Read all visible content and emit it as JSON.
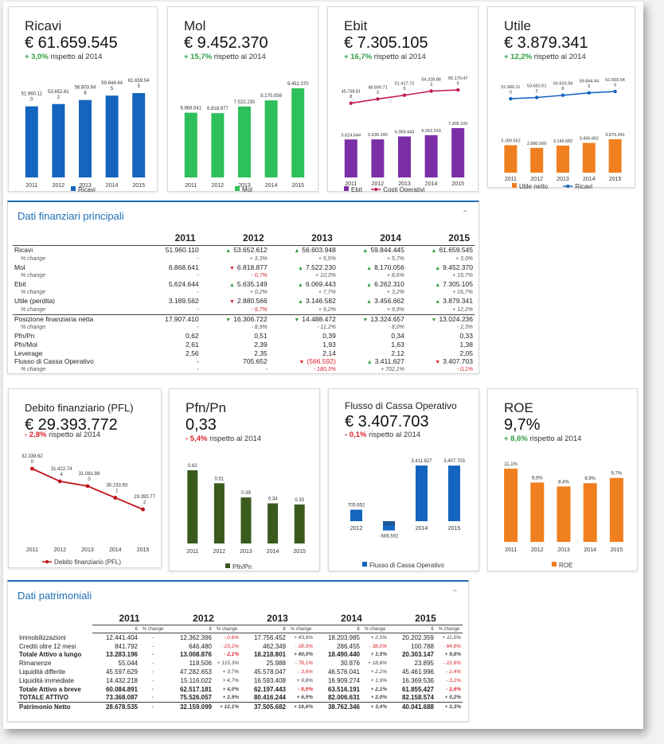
{
  "kpis_top": [
    {
      "title": "Ricavi",
      "value": "€ 61.659.545",
      "change": "+ 3,0%",
      "change_dir": "pos",
      "suffix": "rispetto al 2014"
    },
    {
      "title": "Mol",
      "value": "€ 9.452.370",
      "change": "+ 15,7%",
      "change_dir": "pos",
      "suffix": "rispetto al 2014"
    },
    {
      "title": "Ebit",
      "value": "€ 7.305.105",
      "change": "+ 16,7%",
      "change_dir": "pos",
      "suffix": "rispetto al 2014"
    },
    {
      "title": "Utile",
      "value": "€ 3.879.341",
      "change": "+ 12,2%",
      "change_dir": "pos",
      "suffix": "rispetto al 2014"
    }
  ],
  "kpis_mid": [
    {
      "title": "Debito finanziario (PFL)",
      "value": "€ 29.393.772",
      "change": "- 2,8%",
      "change_dir": "neg",
      "suffix": "rispetto al 2014"
    },
    {
      "title": "Pfn/Pn",
      "value": "0,33",
      "change": "- 5,4%",
      "change_dir": "neg",
      "suffix": "rispetto al 2014"
    },
    {
      "title": "Flusso di Cassa Operativo",
      "value": "€ 3.407.703",
      "change": "- 0,1%",
      "change_dir": "neg",
      "suffix": "rispetto al 2014"
    },
    {
      "title": "ROE",
      "value": "9,7%",
      "change": "+ 8,6%",
      "change_dir": "pos",
      "suffix": "rispetto al 2014"
    }
  ],
  "chart_data": [
    {
      "type": "bar",
      "id": "ricavi",
      "categories": [
        "2011",
        "2012",
        "2013",
        "2014",
        "2015"
      ],
      "values": [
        51960110,
        53652612,
        56603948,
        59844445,
        61659545
      ],
      "labels": [
        "51.960.11\n0",
        "53.652.61\n2",
        "56.603.94\n8",
        "59.844.44\n5",
        "61.659.54\n5"
      ],
      "legend": [
        "Ricavi"
      ],
      "colors": [
        "#1565c0"
      ]
    },
    {
      "type": "bar",
      "id": "mol",
      "categories": [
        "2011",
        "2012",
        "2013",
        "2014",
        "2015"
      ],
      "values": [
        6868641,
        6818877,
        7522230,
        8170056,
        9452370
      ],
      "labels": [
        "6.868.641",
        "6.818.877",
        "7.522.230",
        "8.170.056",
        "9.452.370"
      ],
      "legend": [
        "Mol"
      ],
      "colors": [
        "#2ec05b"
      ]
    },
    {
      "type": "bar",
      "id": "ebit",
      "categories": [
        "2011",
        "2012",
        "2013",
        "2014",
        "2015"
      ],
      "series": [
        {
          "name": "Ebit",
          "values": [
            5624644,
            5635149,
            6069443,
            6262310,
            7305105
          ]
        },
        {
          "name": "Costi Operativi",
          "values": [
            45738818,
            48699713,
            51417725,
            54328883,
            55170476
          ]
        }
      ],
      "bar_labels": [
        "5.624.644",
        "5.635.149",
        "6.069.443",
        "6.262.310",
        "7.305.105"
      ],
      "line_labels": [
        "45.738.81\n8",
        "48.699.71\n3",
        "51.417.72\n5",
        "54.328.88\n3",
        "55.170.47\n6"
      ],
      "legend": [
        "Ebit",
        "Costi Operativi"
      ],
      "colors": [
        "#7b2fa6",
        "#c2185b"
      ]
    },
    {
      "type": "bar",
      "id": "utile",
      "categories": [
        "2011",
        "2012",
        "2013",
        "2014",
        "2015"
      ],
      "series": [
        {
          "name": "Utile netto",
          "values": [
            3189562,
            2880566,
            3146582,
            3456662,
            3879341
          ]
        },
        {
          "name": "Ricavi",
          "values": [
            51960110,
            53652612,
            56603948,
            59844445,
            61659545
          ]
        }
      ],
      "bar_labels": [
        "3.189.562",
        "2.880.566",
        "3.146.582",
        "3.456.662",
        "3.879.341"
      ],
      "line_labels": [
        "51.960.11\n0",
        "53.652.61\n2",
        "56.603.94\n8",
        "59.844.44\n5",
        "61.659.54\n5"
      ],
      "legend": [
        "Utile netto",
        "Ricavi"
      ],
      "colors": [
        "#f07f1f",
        "#1565c0"
      ]
    },
    {
      "type": "line",
      "id": "debito",
      "categories": [
        "2011",
        "2012",
        "2013",
        "2014",
        "2015"
      ],
      "values": [
        32339620,
        31422744,
        31081880,
        30233931,
        29393772
      ],
      "labels": [
        "32.339.62\n0",
        "31.422.74\n4",
        "31.081.88\n0",
        "30.233.93\n1",
        "29.393.77\n2"
      ],
      "legend": [
        "Debito finanziario (PFL)"
      ],
      "colors": [
        "#c0121b"
      ]
    },
    {
      "type": "bar",
      "id": "pfnpn",
      "categories": [
        "2011",
        "2012",
        "2013",
        "2014",
        "2015"
      ],
      "values": [
        0.62,
        0.51,
        0.39,
        0.34,
        0.33
      ],
      "labels": [
        "0.62",
        "0.51",
        "0.39",
        "0.34",
        "0.33"
      ],
      "legend": [
        "Pfn/Pn"
      ],
      "colors": [
        "#3a5a1e"
      ]
    },
    {
      "type": "bar",
      "id": "flusso",
      "categories": [
        "2012",
        "2013",
        "2014",
        "2015"
      ],
      "values": [
        705652,
        -566592,
        3411627,
        3407703
      ],
      "labels": [
        "705.652",
        "-566.592",
        "3.411.627",
        "3.407.703"
      ],
      "legend": [
        "Flusso di Cassa Operativo"
      ],
      "colors": [
        "#1565c0"
      ]
    },
    {
      "type": "bar",
      "id": "roe",
      "categories": [
        "2011",
        "2012",
        "2013",
        "2014",
        "2015"
      ],
      "values": [
        11.1,
        9.0,
        8.4,
        8.9,
        9.7
      ],
      "labels": [
        "11,1%",
        "9,0%",
        "8,4%",
        "8,9%",
        "9,7%"
      ],
      "legend": [
        "ROE"
      ],
      "colors": [
        "#f07f1f"
      ]
    }
  ],
  "fin_panel": {
    "title": "Dati finanziari principali",
    "years": [
      "2011",
      "2012",
      "2013",
      "2014",
      "2015"
    ],
    "rows": [
      {
        "label": "Ricavi",
        "cells": [
          [
            "",
            "51.960.110"
          ],
          [
            "up",
            "53.652.612"
          ],
          [
            "up",
            "56.603.948"
          ],
          [
            "up",
            "59.844.445"
          ],
          [
            "up",
            "61.659.545"
          ]
        ]
      },
      {
        "label": "% change",
        "sub": true,
        "cells": [
          [
            "",
            "-"
          ],
          [
            "",
            "+ 3,3%"
          ],
          [
            "",
            "+ 5,5%"
          ],
          [
            "",
            "+ 5,7%"
          ],
          [
            "",
            "+ 3,0%"
          ]
        ]
      },
      {
        "label": "Mol",
        "cells": [
          [
            "",
            "6.868.641"
          ],
          [
            "dn",
            "6.818.877"
          ],
          [
            "up",
            "7.522.230"
          ],
          [
            "up",
            "8.170.056"
          ],
          [
            "up",
            "9.452.370"
          ]
        ]
      },
      {
        "label": "% change",
        "sub": true,
        "cells": [
          [
            "",
            "-"
          ],
          [
            "r",
            "- 0,7%"
          ],
          [
            "",
            "+ 10,3%"
          ],
          [
            "",
            "+ 8,6%"
          ],
          [
            "",
            "+ 15,7%"
          ]
        ]
      },
      {
        "label": "Ebit",
        "cells": [
          [
            "",
            "5.624.644"
          ],
          [
            "up",
            "5.635.149"
          ],
          [
            "up",
            "6.069.443"
          ],
          [
            "up",
            "6.262.310"
          ],
          [
            "up",
            "7.305.105"
          ]
        ]
      },
      {
        "label": "% change",
        "sub": true,
        "cells": [
          [
            "",
            "-"
          ],
          [
            "",
            "+ 0,2%"
          ],
          [
            "",
            "+ 7,7%"
          ],
          [
            "",
            "+ 3,2%"
          ],
          [
            "",
            "+ 16,7%"
          ]
        ]
      },
      {
        "label": "Utile (perdita)",
        "cells": [
          [
            "",
            "3.189.562"
          ],
          [
            "dn",
            "2.880.566"
          ],
          [
            "up",
            "3.146.582"
          ],
          [
            "up",
            "3.456.662"
          ],
          [
            "up",
            "3.879.341"
          ]
        ]
      },
      {
        "label": "% change",
        "sub": true,
        "cells": [
          [
            "",
            "-"
          ],
          [
            "r",
            "- 9,7%"
          ],
          [
            "",
            "+ 9,2%"
          ],
          [
            "",
            "+ 9,9%"
          ],
          [
            "",
            "+ 12,2%"
          ]
        ]
      },
      {
        "label": "Posizione finanziaria netta",
        "sep": true,
        "cells": [
          [
            "",
            "17.907.410"
          ],
          [
            "dnG",
            "16.306.722"
          ],
          [
            "dnG",
            "14.488.472"
          ],
          [
            "dnG",
            "13.324.657"
          ],
          [
            "dnG",
            "13.024.236"
          ]
        ]
      },
      {
        "label": "% change",
        "sub": true,
        "cells": [
          [
            "",
            "-"
          ],
          [
            "",
            "- 8,9%"
          ],
          [
            "",
            "- 11,2%"
          ],
          [
            "",
            "- 8,0%"
          ],
          [
            "",
            "- 2,3%"
          ]
        ]
      },
      {
        "label": "Pfn/Pn",
        "plain": true,
        "cells": [
          [
            "",
            "0,62"
          ],
          [
            "",
            "0,51"
          ],
          [
            "",
            "0,39"
          ],
          [
            "",
            "0,34"
          ],
          [
            "",
            "0,33"
          ]
        ]
      },
      {
        "label": "Pfn/Mol",
        "plain": true,
        "cells": [
          [
            "",
            "2,61"
          ],
          [
            "",
            "2,39"
          ],
          [
            "",
            "1,93"
          ],
          [
            "",
            "1,63"
          ],
          [
            "",
            "1,38"
          ]
        ]
      },
      {
        "label": "Leverage",
        "plain": true,
        "cells": [
          [
            "",
            "2,56"
          ],
          [
            "",
            "2,35"
          ],
          [
            "",
            "2,14"
          ],
          [
            "",
            "2,12"
          ],
          [
            "",
            "2,05"
          ]
        ]
      },
      {
        "label": "Flusso di Cassa Operativo",
        "cells": [
          [
            "",
            "-"
          ],
          [
            "",
            "705.652"
          ],
          [
            "dnR",
            "(566.592)"
          ],
          [
            "up",
            "3.411.627"
          ],
          [
            "dn",
            "3.407.703"
          ]
        ]
      },
      {
        "label": "% change",
        "sub": true,
        "cells": [
          [
            "",
            "-"
          ],
          [
            "",
            "-"
          ],
          [
            "r",
            "- 180,3%"
          ],
          [
            "",
            "+ 702,1%"
          ],
          [
            "r",
            "- 0,1%"
          ]
        ]
      }
    ]
  },
  "pat_panel": {
    "title": "Dati patrimoniali",
    "years": [
      "2011",
      "2012",
      "2013",
      "2014",
      "2015"
    ],
    "subhead": [
      "€",
      "% change"
    ],
    "rows": [
      {
        "label": "Immobilizzazioni",
        "cells": [
          "12.441.404",
          "-",
          "12.362.396",
          "- 0,6%",
          "17.756.452",
          "+ 43,6%",
          "18.203.985",
          "+ 2,5%",
          "20.202.359",
          "+ 11,0%"
        ]
      },
      {
        "label": "Crediti oltre 12 mesi",
        "cells": [
          "841.792",
          "-",
          "646.480",
          "- 23,2%",
          "462.349",
          "- 28,5%",
          "286.455",
          "- 38,0%",
          "100.788",
          "- 64,8%"
        ]
      },
      {
        "label": "Totale Attivo a lungo",
        "bold": true,
        "cells": [
          "13.283.196",
          "-",
          "13.008.876",
          "- 2,1%",
          "18.218.801",
          "+ 40,0%",
          "18.490.440",
          "+ 1,5%",
          "20.303.147",
          "+ 9,8%"
        ]
      },
      {
        "label": "Rimanenze",
        "cells": [
          "55.044",
          "-",
          "118.506",
          "+ 115,3%",
          "25.988",
          "- 78,1%",
          "30.876",
          "+ 18,8%",
          "23.895",
          "- 22,6%"
        ]
      },
      {
        "label": "Liquidità differite",
        "cells": [
          "45.597.629",
          "-",
          "47.282.653",
          "+ 3,7%",
          "45.578.047",
          "- 3,6%",
          "46.576.041",
          "+ 2,2%",
          "45.461.996",
          "- 2,4%"
        ]
      },
      {
        "label": "Liquidità immediate",
        "cells": [
          "14.432.218",
          "-",
          "15.116.022",
          "+ 4,7%",
          "16.593.408",
          "+ 9,8%",
          "16.909.274",
          "+ 1,9%",
          "16.369.536",
          "- 3,2%"
        ]
      },
      {
        "label": "Totale Attivo a breve",
        "bold": true,
        "cells": [
          "60.084.891",
          "-",
          "62.517.181",
          "+ 4,0%",
          "62.197.443",
          "- 0,5%",
          "63.516.191",
          "+ 2,1%",
          "61.855.427",
          "- 2,6%"
        ]
      },
      {
        "label": "TOTALE ATTIVO",
        "bold": true,
        "cells": [
          "73.368.087",
          "-",
          "75.526.057",
          "+ 2,9%",
          "80.416.244",
          "+ 6,5%",
          "82.006.631",
          "+ 2,0%",
          "82.158.574",
          "+ 0,2%"
        ]
      },
      {
        "label": "Patrimonio Netto",
        "bold": true,
        "sep": true,
        "cells": [
          "28.678.535",
          "-",
          "32.159.099",
          "+ 12,1%",
          "37.505.682",
          "+ 16,6%",
          "38.762.346",
          "+ 3,4%",
          "40.041.688",
          "+ 3,3%"
        ]
      }
    ]
  },
  "collapse_glyph": "⌃"
}
